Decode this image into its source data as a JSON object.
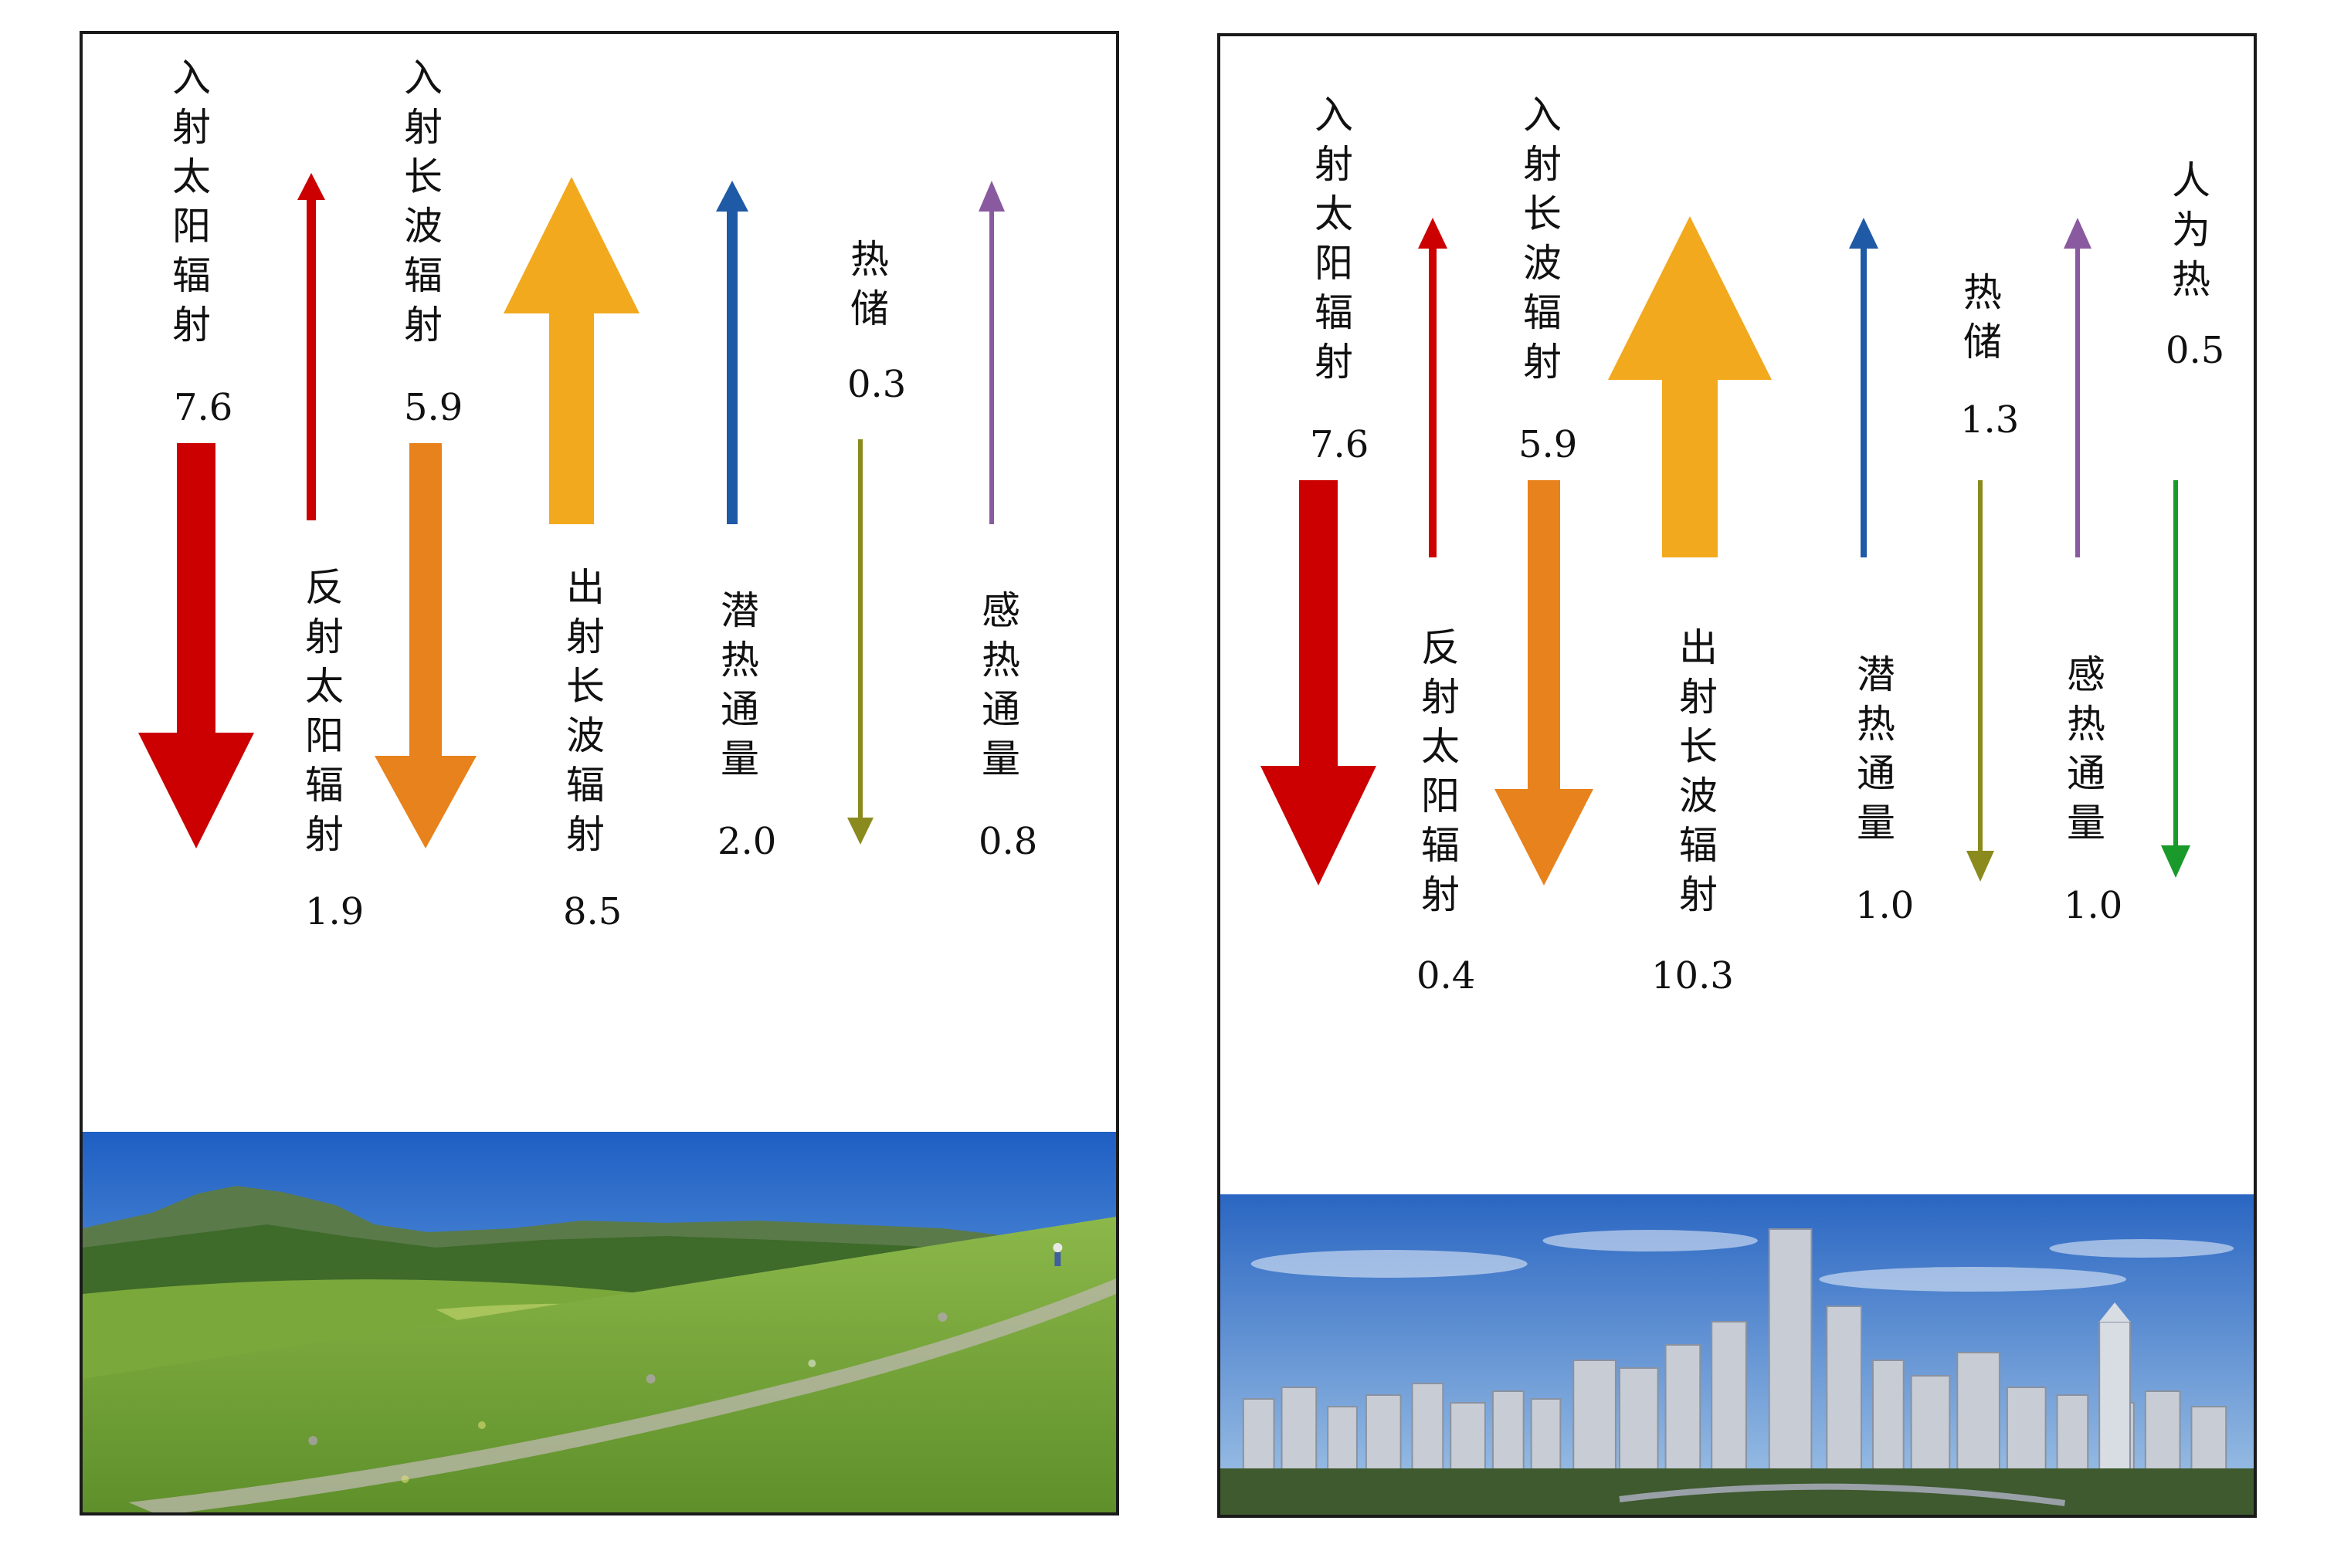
{
  "panels": [
    {
      "id": "rural",
      "scene": "grassland-mountain",
      "fluxes": [
        {
          "label": "入射太阳辐射",
          "value": "7.6",
          "color": "#cc0000",
          "direction": "down"
        },
        {
          "label": "反射太阳辐射",
          "value": "1.9",
          "color": "#cc0000",
          "direction": "up"
        },
        {
          "label": "入射长波辐射",
          "value": "5.9",
          "color": "#e8821c",
          "direction": "down"
        },
        {
          "label": "出射长波辐射",
          "value": "8.5",
          "color": "#f2a91e",
          "direction": "up"
        },
        {
          "label": "潜热通量",
          "value": "2.0",
          "color": "#1f5aa6",
          "direction": "up"
        },
        {
          "label": "热储",
          "value": "0.3",
          "color": "#8a8a1e",
          "direction": "down"
        },
        {
          "label": "感热通量",
          "value": "0.8",
          "color": "#8a5aa0",
          "direction": "up"
        }
      ]
    },
    {
      "id": "urban",
      "scene": "city-skyline",
      "fluxes": [
        {
          "label": "入射太阳辐射",
          "value": "7.6",
          "color": "#cc0000",
          "direction": "down"
        },
        {
          "label": "反射太阳辐射",
          "value": "0.4",
          "color": "#cc0000",
          "direction": "up"
        },
        {
          "label": "入射长波辐射",
          "value": "5.9",
          "color": "#e8821c",
          "direction": "down"
        },
        {
          "label": "出射长波辐射",
          "value": "10.3",
          "color": "#f2a91e",
          "direction": "up"
        },
        {
          "label": "潜热通量",
          "value": "1.0",
          "color": "#1f5aa6",
          "direction": "up"
        },
        {
          "label": "热储",
          "value": "1.3",
          "color": "#8a8a1e",
          "direction": "down"
        },
        {
          "label": "感热通量",
          "value": "1.0",
          "color": "#8a5aa0",
          "direction": "up"
        },
        {
          "label": "人为热",
          "value": "0.5",
          "color": "#1a9a2a",
          "direction": "down"
        }
      ]
    }
  ]
}
